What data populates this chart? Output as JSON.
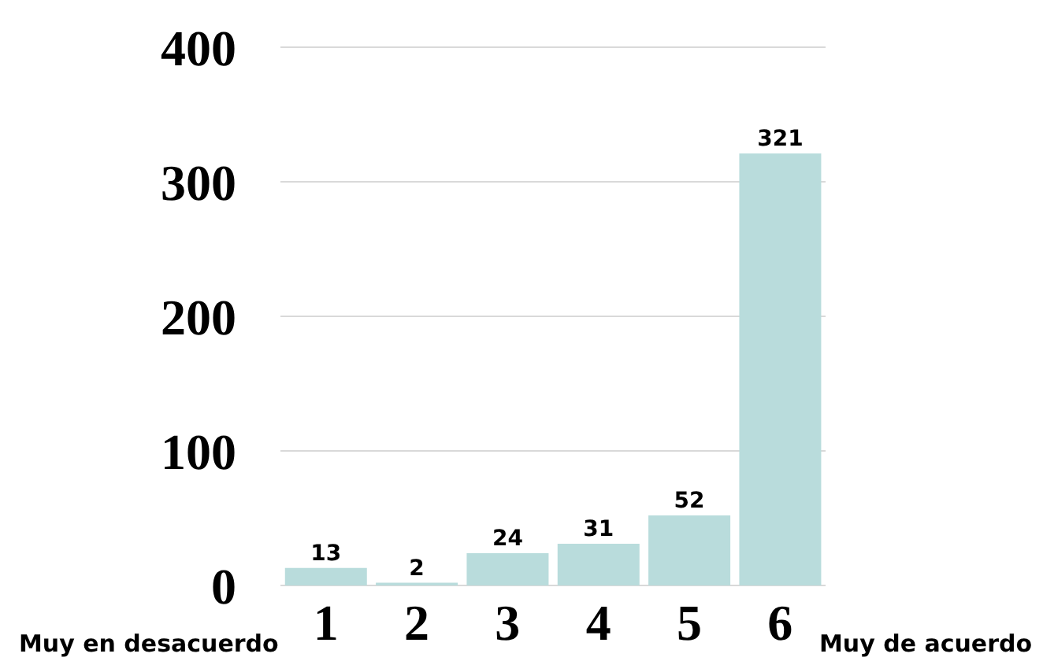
{
  "chart_data": {
    "type": "bar",
    "categories": [
      "1",
      "2",
      "3",
      "4",
      "5",
      "6"
    ],
    "values": [
      13,
      2,
      24,
      31,
      52,
      321
    ],
    "color": "#b9dcdc",
    "ylim": [
      0,
      400
    ],
    "yticks": [
      0,
      100,
      200,
      300,
      400
    ],
    "grid": "y",
    "data_labels": true,
    "annotations": [
      "Muy en desacuerdo",
      "Muy de acuerdo"
    ]
  }
}
